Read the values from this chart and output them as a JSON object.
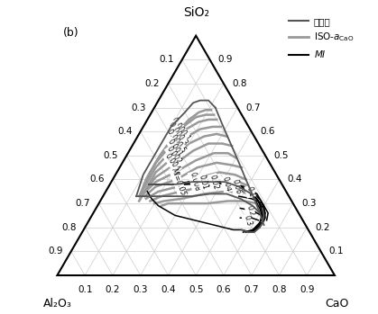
{
  "title_top": "SiO₂",
  "title_left": "Al₂O₃",
  "title_right": "CaO",
  "label_b": "(b)",
  "tick_values": [
    0.1,
    0.2,
    0.3,
    0.4,
    0.5,
    0.6,
    0.7,
    0.8,
    0.9
  ],
  "legend_entries": [
    {
      "label": "液相线",
      "color": "#555555",
      "lw": 1.5
    },
    {
      "label": "ISO-a_CaO",
      "color": "#999999",
      "lw": 2.0
    },
    {
      "label": "MI",
      "color": "#000000",
      "lw": 1.5
    }
  ],
  "bg_color": "#ffffff",
  "grid_color": "#cccccc",
  "triangle_color": "#000000",
  "liquidus_color": "#555555",
  "liquidus_lw": 1.3,
  "iso_color": "#999999",
  "iso_lw": 1.8,
  "mi_color": "#000000",
  "mi_lw": 1.1
}
